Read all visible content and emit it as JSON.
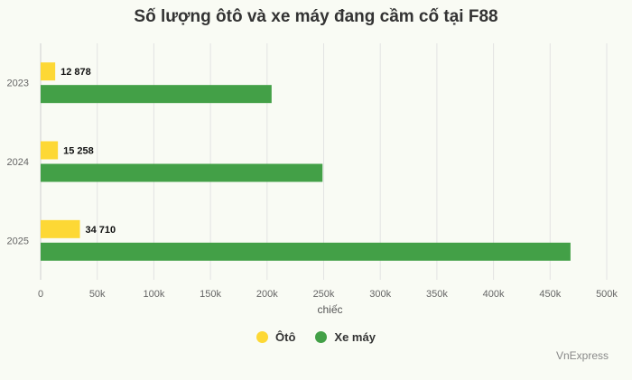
{
  "chart_data": {
    "type": "bar",
    "orientation": "horizontal",
    "title": "Số lượng ôtô và xe máy đang cầm cố tại F88",
    "xlabel": "chiếc",
    "ylabel": "",
    "categories": [
      "2023",
      "2024",
      "2025"
    ],
    "series": [
      {
        "name": "Ôtô",
        "color": "#fdd835",
        "values": [
          12878,
          15258,
          34710
        ],
        "data_labels": [
          "12 878",
          "15 258",
          "34 710"
        ]
      },
      {
        "name": "Xe máy",
        "color": "#43a047",
        "values": [
          204000,
          249000,
          468000
        ]
      }
    ],
    "xlim": [
      0,
      500000
    ],
    "xticks": [
      0,
      50000,
      100000,
      150000,
      200000,
      250000,
      300000,
      350000,
      400000,
      450000,
      500000
    ],
    "xtick_labels": [
      "0",
      "50k",
      "100k",
      "150k",
      "200k",
      "250k",
      "300k",
      "350k",
      "400k",
      "450k",
      "500k"
    ],
    "grid": true,
    "legend_position": "bottom"
  },
  "credit": "VnExpress"
}
